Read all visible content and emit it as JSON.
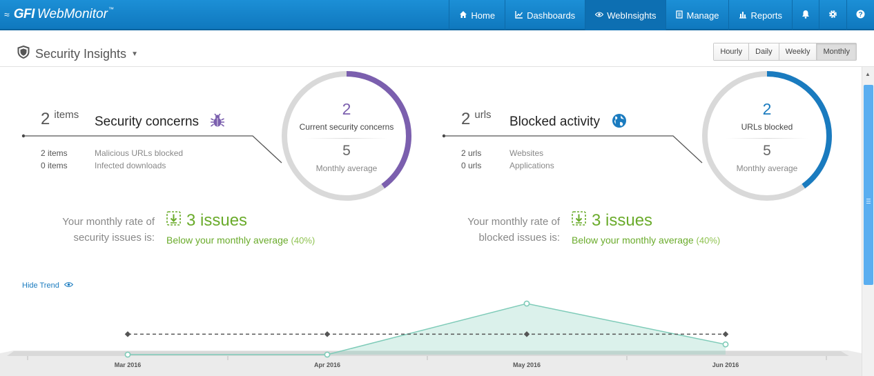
{
  "app": {
    "brand": "GFI",
    "product": "WebMonitor",
    "tm": "™"
  },
  "nav": {
    "home": "Home",
    "dashboards": "Dashboards",
    "webinsights": "WebInsights",
    "manage": "Manage",
    "reports": "Reports"
  },
  "header": {
    "title": "Security Insights",
    "periods": [
      "Hourly",
      "Daily",
      "Weekly",
      "Monthly"
    ],
    "active_period": "Monthly"
  },
  "security": {
    "count": "2",
    "unit": "items",
    "title": "Security concerns",
    "rows": [
      {
        "value": "2 items",
        "label": "Malicious URLs blocked"
      },
      {
        "value": "0 items",
        "label": "Infected downloads"
      }
    ],
    "gauge": {
      "value": "2",
      "label": "Current security concerns",
      "avg": "5",
      "avg_label": "Monthly average",
      "fraction": 0.4,
      "color": "#7b5fae"
    },
    "rate_line1": "Your monthly rate of",
    "rate_line2": "security issues is:",
    "issues": "3 issues",
    "below": "Below your monthly average",
    "below_pct": "(40%)"
  },
  "blocked": {
    "count": "2",
    "unit": "urls",
    "title": "Blocked activity",
    "rows": [
      {
        "value": "2 urls",
        "label": "Websites"
      },
      {
        "value": "0 urls",
        "label": "Applications"
      }
    ],
    "gauge": {
      "value": "2",
      "label": "URLs blocked",
      "avg": "5",
      "avg_label": "Monthly average",
      "fraction": 0.4,
      "color": "#1a7bbf"
    },
    "rate_line1": "Your monthly rate of",
    "rate_line2": "blocked issues is:",
    "issues": "3 issues",
    "below": "Below your monthly average",
    "below_pct": "(40%)"
  },
  "trend": {
    "toggle_label": "Hide Trend"
  },
  "chart_data": {
    "type": "area",
    "categories": [
      "Mar 2016",
      "Apr 2016",
      "May 2016",
      "Jun 2016"
    ],
    "series": [
      {
        "values": [
          0,
          0,
          5,
          1
        ],
        "style": "area",
        "color": "#7ecbb8"
      },
      {
        "values": [
          2,
          2,
          2,
          2
        ],
        "style": "dashed-line",
        "color": "#555555"
      }
    ],
    "ylim": [
      0,
      6
    ],
    "grid": false
  },
  "colors": {
    "accent": "#1a7bbf",
    "green": "#6aab2b",
    "purple": "#7b5fae"
  }
}
